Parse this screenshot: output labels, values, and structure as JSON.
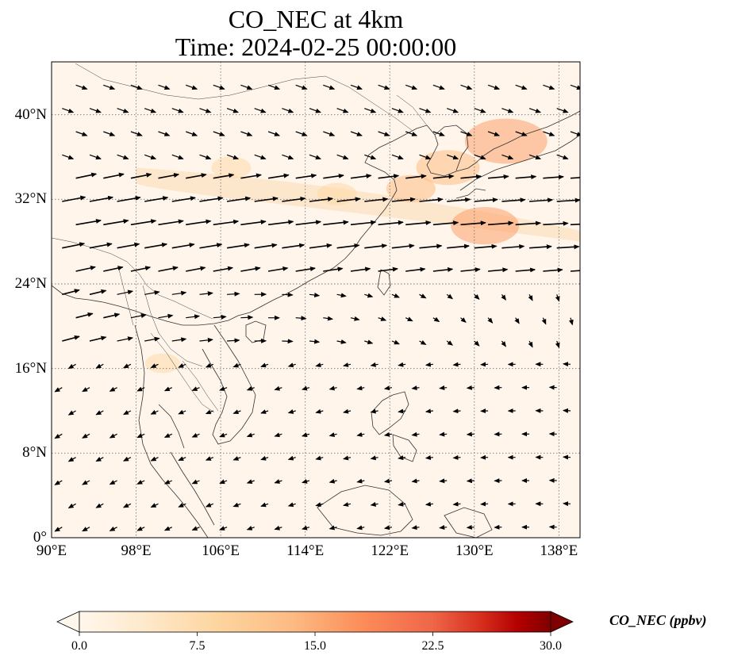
{
  "title": {
    "line1": "CO_NEC at 4km",
    "line2": "Time: 2024-02-25 00:00:00"
  },
  "map": {
    "extent": {
      "lon_min": 90,
      "lon_max": 140,
      "lat_min": 0,
      "lat_max": 45
    },
    "lon_ticks": [
      {
        "value": 90,
        "label": "90°E"
      },
      {
        "value": 98,
        "label": "98°E"
      },
      {
        "value": 106,
        "label": "106°E"
      },
      {
        "value": 114,
        "label": "114°E"
      },
      {
        "value": 122,
        "label": "122°E"
      },
      {
        "value": 130,
        "label": "130°E"
      },
      {
        "value": 138,
        "label": "138°E"
      }
    ],
    "lat_ticks": [
      {
        "value": 0,
        "label": "0°"
      },
      {
        "value": 8,
        "label": "8°N"
      },
      {
        "value": 16,
        "label": "16°N"
      },
      {
        "value": 24,
        "label": "24°N"
      },
      {
        "value": 32,
        "label": "32°N"
      },
      {
        "value": 40,
        "label": "40°N"
      }
    ],
    "gridlines": "dotted",
    "background_color": "#fff5eb",
    "high_concentration_areas": [
      {
        "lon": 133,
        "lat": 37.5,
        "level": 14
      },
      {
        "lon": 127.5,
        "lat": 35,
        "level": 10
      },
      {
        "lon": 131,
        "lat": 29.5,
        "level": 11
      },
      {
        "lon": 124,
        "lat": 33,
        "level": 7
      },
      {
        "lon": 107,
        "lat": 35,
        "level": 5
      },
      {
        "lon": 117,
        "lat": 32.5,
        "level": 5
      },
      {
        "lon": 100.5,
        "lat": 16.5,
        "level": 4
      }
    ]
  },
  "colorbar": {
    "colormap": "OrRd",
    "min": 0.0,
    "max": 30.0,
    "extend": "both",
    "ticks": [
      "0.0",
      "7.5",
      "15.0",
      "22.5",
      "30.0"
    ],
    "label": "CO_NEC (ppbv)"
  }
}
